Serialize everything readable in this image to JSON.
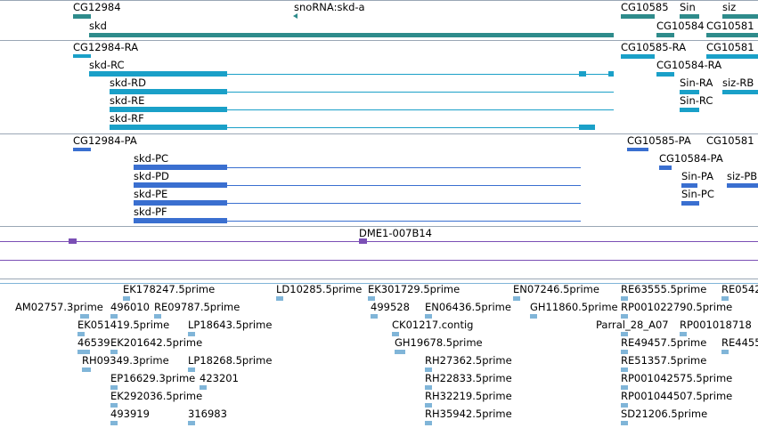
{
  "tracks": {
    "gene_track": {
      "labels": [
        {
          "text": "CG12984"
        },
        {
          "text": "snoRNA:skd-a"
        },
        {
          "text": "CG10585"
        },
        {
          "text": "Sin"
        },
        {
          "text": "siz"
        },
        {
          "text": "skd"
        },
        {
          "text": "CG10584"
        },
        {
          "text": "CG10581"
        }
      ]
    },
    "transcript_track": {
      "labels": [
        {
          "text": "CG12984-RA"
        },
        {
          "text": "CG10585-RA"
        },
        {
          "text": "CG10581"
        },
        {
          "text": "skd-RC"
        },
        {
          "text": "CG10584-RA"
        },
        {
          "text": "skd-RD"
        },
        {
          "text": "Sin-RA"
        },
        {
          "text": "siz-RB"
        },
        {
          "text": "skd-RE"
        },
        {
          "text": "Sin-RC"
        },
        {
          "text": "skd-RF"
        }
      ]
    },
    "protein_track": {
      "labels": [
        {
          "text": "CG12984-PA"
        },
        {
          "text": "CG10585-PA"
        },
        {
          "text": "CG10581"
        },
        {
          "text": "skd-PC"
        },
        {
          "text": "CG10584-PA"
        },
        {
          "text": "skd-PD"
        },
        {
          "text": "Sin-PA"
        },
        {
          "text": "siz-PB"
        },
        {
          "text": "skd-PE"
        },
        {
          "text": "Sin-PC"
        },
        {
          "text": "skd-PF"
        }
      ]
    },
    "clone_track": {
      "labels": [
        {
          "text": "DME1-007B14"
        }
      ]
    },
    "est_track": {
      "labels": [
        {
          "text": "EK178247.5prime"
        },
        {
          "text": "LD10285.5prime"
        },
        {
          "text": "EK301729.5prime"
        },
        {
          "text": "EN07246.5prime"
        },
        {
          "text": "RE63555.5prime"
        },
        {
          "text": "RE0542"
        },
        {
          "text": "AM02757.3prime"
        },
        {
          "text": "496010"
        },
        {
          "text": "RE09787.5prime"
        },
        {
          "text": "499528"
        },
        {
          "text": "EN06436.5prime"
        },
        {
          "text": "GH11860.5prime"
        },
        {
          "text": "RP001022790.5prime"
        },
        {
          "text": "EK051419.5prime"
        },
        {
          "text": "LP18643.5prime"
        },
        {
          "text": "CK01217.contig"
        },
        {
          "text": "Parral_28_A07"
        },
        {
          "text": "RP001018718"
        },
        {
          "text": "46539"
        },
        {
          "text": "EK201642.5prime"
        },
        {
          "text": "GH19678.5prime"
        },
        {
          "text": "RE49457.5prime"
        },
        {
          "text": "RE4455"
        },
        {
          "text": "RH09349.3prime"
        },
        {
          "text": "LP18268.5prime"
        },
        {
          "text": "RH27362.5prime"
        },
        {
          "text": "RE51357.5prime"
        },
        {
          "text": "EP16629.3prime"
        },
        {
          "text": "423201"
        },
        {
          "text": "RH22833.5prime"
        },
        {
          "text": "RP001042575.5prime"
        },
        {
          "text": "EK292036.5prime"
        },
        {
          "text": "RH32219.5prime"
        },
        {
          "text": "RP001044507.5prime"
        },
        {
          "text": "493919"
        },
        {
          "text": "316983"
        },
        {
          "text": "RH35942.5prime"
        },
        {
          "text": "SD21206.5prime"
        }
      ]
    }
  },
  "colors": {
    "gene": "#2e8b8b",
    "transcript": "#1aa0c8",
    "protein": "#3a6fd0",
    "clone": "#7b4fb5",
    "est": "#80b5d8",
    "separator": "#9aa7b5"
  }
}
